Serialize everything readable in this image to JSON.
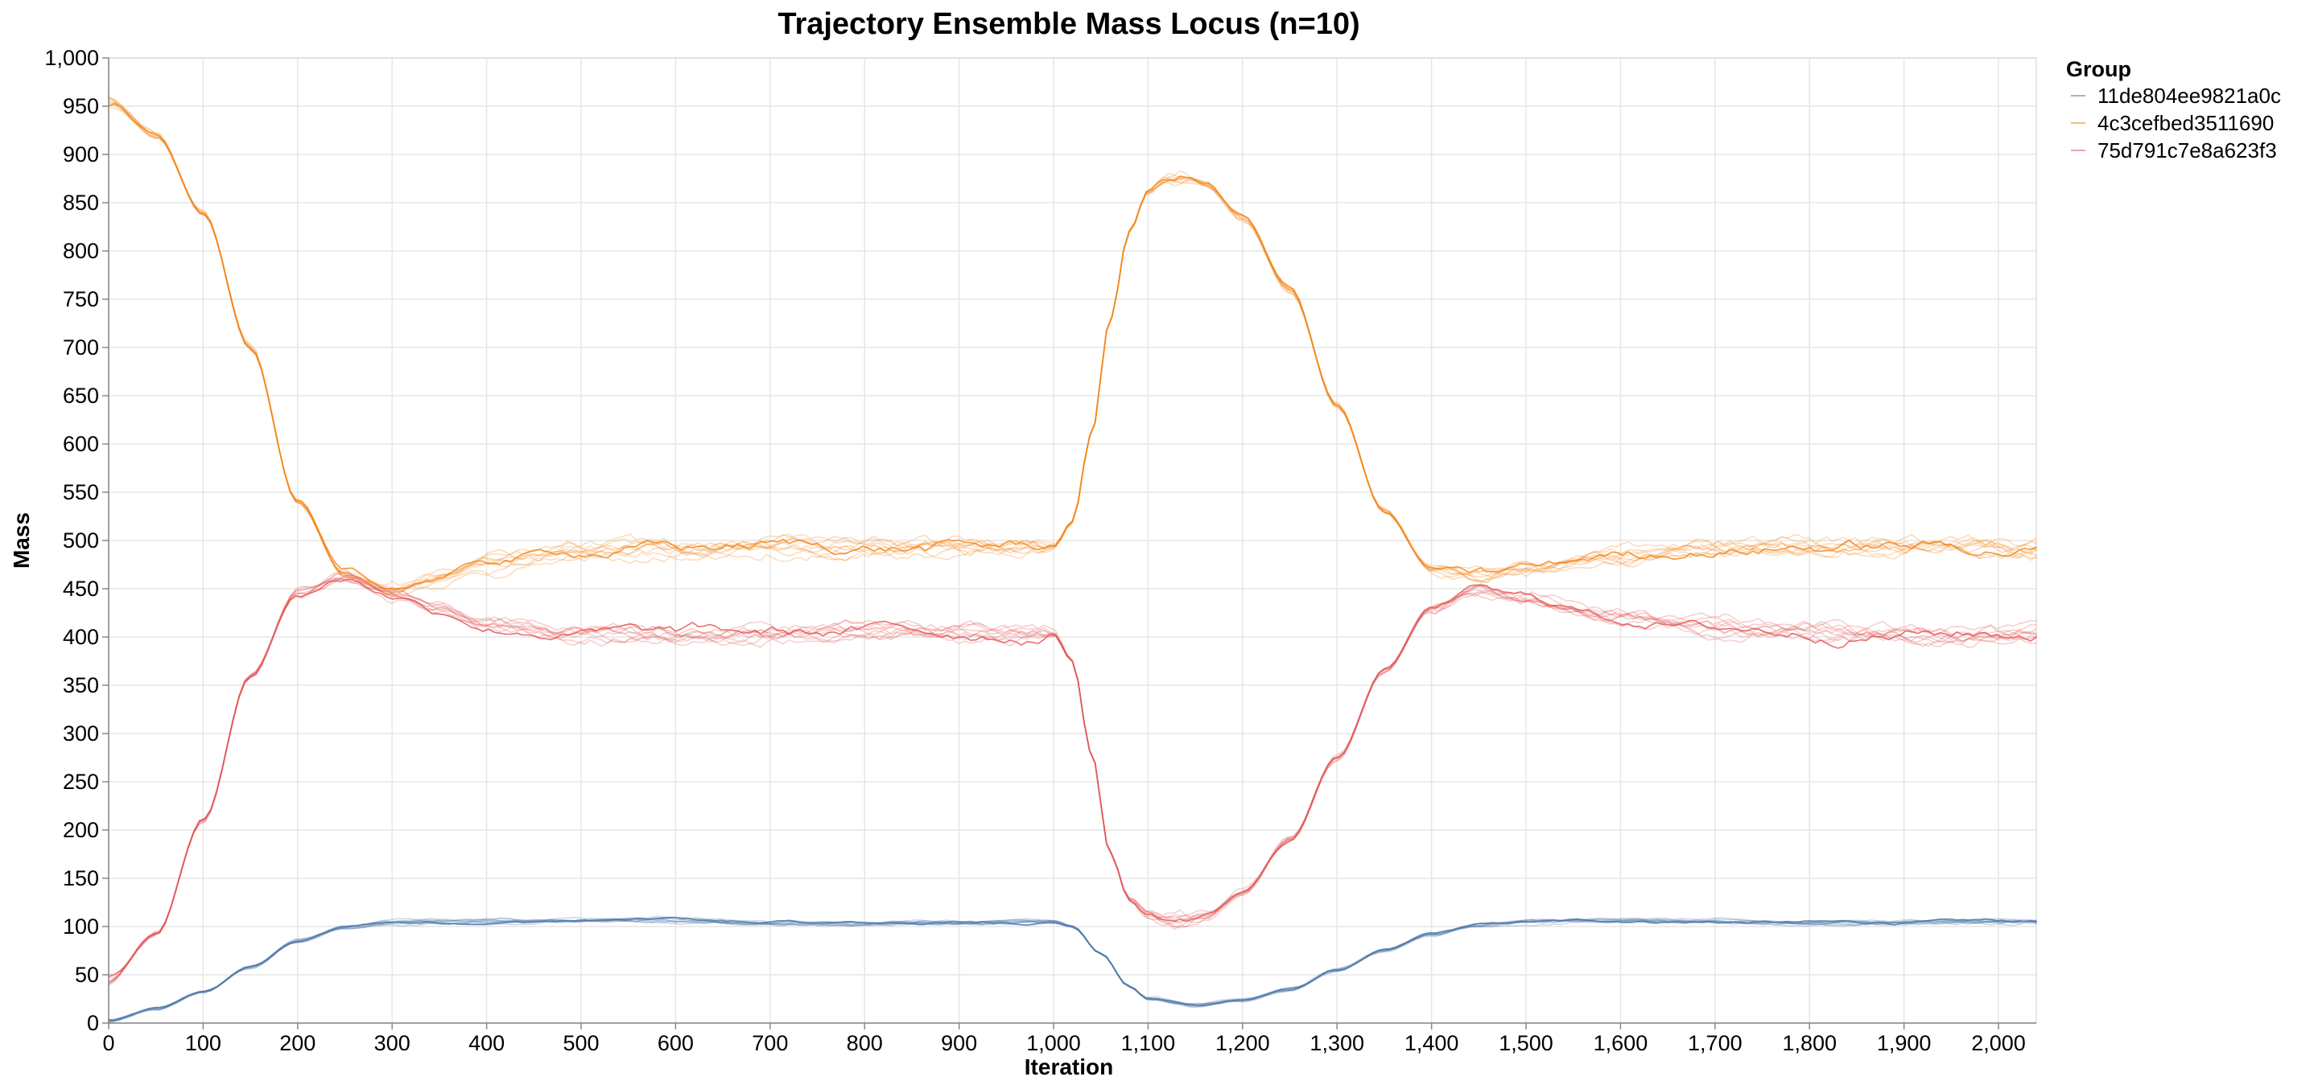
{
  "chart_data": {
    "type": "line",
    "title": "Trajectory Ensemble Mass Locus (n=10)",
    "xlabel": "Iteration",
    "ylabel": "Mass",
    "xlim": [
      0,
      2000
    ],
    "ylim": [
      0,
      1000
    ],
    "x_ticks": [
      0,
      100,
      200,
      300,
      400,
      500,
      600,
      700,
      800,
      900,
      1000,
      1100,
      1200,
      1300,
      1400,
      1500,
      1600,
      1700,
      1800,
      1900,
      2000
    ],
    "x_tick_labels": [
      "0",
      "100",
      "200",
      "300",
      "400",
      "500",
      "600",
      "700",
      "800",
      "900",
      "1,000",
      "1,100",
      "1,200",
      "1,300",
      "1,400",
      "1,500",
      "1,600",
      "1,700",
      "1,800",
      "1,900",
      "2,000"
    ],
    "y_ticks": [
      0,
      50,
      100,
      150,
      200,
      250,
      300,
      350,
      400,
      450,
      500,
      550,
      600,
      650,
      700,
      750,
      800,
      850,
      900,
      950,
      1000
    ],
    "y_tick_labels": [
      "0",
      "50",
      "100",
      "150",
      "200",
      "250",
      "300",
      "350",
      "400",
      "450",
      "500",
      "550",
      "600",
      "650",
      "700",
      "750",
      "800",
      "850",
      "900",
      "950",
      "1,000"
    ],
    "grid": true,
    "legend": {
      "title": "Group",
      "placement": "right"
    },
    "runs_per_group": 10,
    "groups": [
      {
        "name": "11de804ee9821a0c",
        "color": "#4c78a8",
        "mean_x": [
          0,
          50,
          100,
          150,
          200,
          250,
          300,
          400,
          500,
          600,
          700,
          800,
          900,
          1000,
          1020,
          1050,
          1080,
          1100,
          1150,
          1200,
          1250,
          1300,
          1350,
          1400,
          1450,
          1500,
          1600,
          1700,
          1800,
          1900,
          2000,
          2040
        ],
        "mean_y": [
          2,
          14,
          32,
          58,
          85,
          99,
          104,
          105,
          106,
          107,
          104,
          103,
          104,
          105,
          100,
          72,
          38,
          25,
          19,
          24,
          35,
          55,
          75,
          92,
          101,
          104,
          106,
          105,
          104,
          104,
          105,
          105
        ]
      },
      {
        "name": "4c3cefbed3511690",
        "color": "#f58518",
        "mean_x": [
          0,
          50,
          100,
          150,
          200,
          250,
          300,
          350,
          400,
          500,
          600,
          700,
          800,
          900,
          1000,
          1020,
          1040,
          1060,
          1080,
          1100,
          1120,
          1140,
          1160,
          1200,
          1250,
          1300,
          1350,
          1400,
          1450,
          1500,
          1600,
          1700,
          1800,
          1900,
          2000,
          2040
        ],
        "mean_y": [
          955,
          920,
          840,
          700,
          540,
          465,
          450,
          462,
          478,
          490,
          492,
          495,
          493,
          492,
          495,
          520,
          610,
          730,
          820,
          862,
          875,
          877,
          870,
          835,
          760,
          640,
          530,
          470,
          462,
          470,
          485,
          492,
          495,
          494,
          492,
          492
        ]
      },
      {
        "name": "75d791c7e8a623f3",
        "color": "#e45756",
        "mean_x": [
          0,
          50,
          100,
          150,
          200,
          250,
          300,
          350,
          400,
          500,
          600,
          700,
          800,
          900,
          1000,
          1020,
          1040,
          1060,
          1080,
          1100,
          1120,
          1140,
          1160,
          1200,
          1250,
          1300,
          1350,
          1400,
          1450,
          1500,
          1600,
          1700,
          1800,
          1900,
          2000,
          2040
        ],
        "mean_y": [
          45,
          92,
          210,
          360,
          445,
          462,
          445,
          428,
          412,
          404,
          402,
          403,
          405,
          405,
          403,
          375,
          280,
          175,
          128,
          112,
          107,
          106,
          110,
          135,
          190,
          275,
          365,
          430,
          448,
          438,
          420,
          410,
          406,
          405,
          405,
          405
        ]
      }
    ]
  }
}
